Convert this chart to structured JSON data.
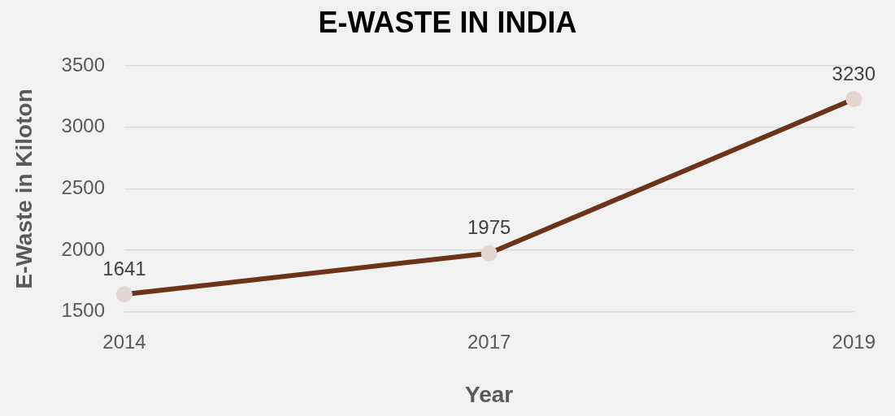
{
  "chart_data": {
    "type": "line",
    "title": "E-WASTE IN INDIA",
    "xlabel": "Year",
    "ylabel": "E-Waste in Kiloton",
    "categories": [
      "2014",
      "2017",
      "2019"
    ],
    "series": [
      {
        "color": "#6b3317",
        "values": [
          1641,
          1975,
          3230
        ]
      }
    ],
    "ylim": [
      1500,
      3500
    ],
    "yticks": [
      1500,
      2000,
      2500,
      3000,
      3500
    ],
    "grid": "y",
    "legend": false,
    "marker": "circle",
    "line_style": "solid",
    "data_labels": true
  }
}
